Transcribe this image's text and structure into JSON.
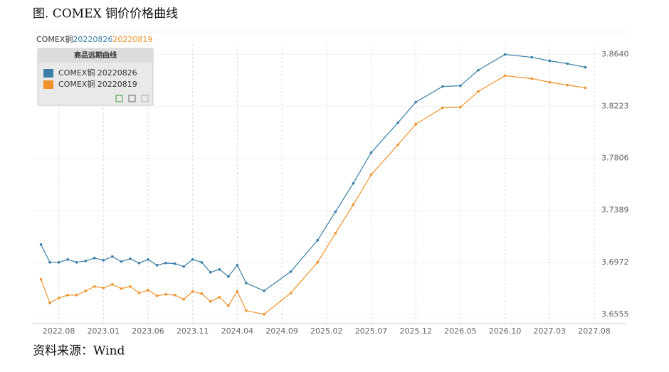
{
  "chart_data": {
    "type": "line",
    "title": "图. COMEX 铜价价格曲线",
    "header_parts": [
      "COMEX铜",
      "20220826",
      "20220819"
    ],
    "legend_title": "商品远期曲线",
    "source": "资料来源：Wind",
    "x": [
      "2022.06",
      "2022.07",
      "2022.08",
      "2022.09",
      "2022.10",
      "2022.11",
      "2022.12",
      "2023.01",
      "2023.02",
      "2023.03",
      "2023.04",
      "2023.05",
      "2023.06",
      "2023.07",
      "2023.08",
      "2023.09",
      "2023.10",
      "2023.11",
      "2023.12",
      "2024.01",
      "2024.02",
      "2024.03",
      "2024.04",
      "2024.05",
      "2024.07",
      "2024.10",
      "2025.01",
      "2025.03",
      "2025.05",
      "2025.07",
      "2025.10",
      "2025.12",
      "2026.03",
      "2026.05",
      "2026.07",
      "2026.10",
      "2027.01",
      "2027.03",
      "2027.05",
      "2027.07"
    ],
    "series": [
      {
        "name": "COMEX铜 20220826",
        "color": "#3a7fa8",
        "values": [
          3.7115,
          3.6972,
          3.6972,
          3.6995,
          3.6972,
          3.6983,
          3.7006,
          3.6989,
          3.7018,
          3.6978,
          3.7001,
          3.6966,
          3.6995,
          3.6949,
          3.6966,
          3.6961,
          3.6938,
          3.6995,
          3.6972,
          3.6892,
          3.6915,
          3.6858,
          3.6949,
          3.6806,
          3.6743,
          3.6898,
          3.7149,
          3.7378,
          3.7606,
          3.7852,
          3.8092,
          3.8257,
          3.8383,
          3.8389,
          3.8514,
          3.864,
          3.8617,
          3.8589,
          3.8566,
          3.8537
        ]
      },
      {
        "name": "COMEX铜 20220819",
        "color": "#f0922b",
        "values": [
          3.6835,
          3.6646,
          3.6686,
          3.6709,
          3.6709,
          3.6743,
          3.6778,
          3.6766,
          3.6795,
          3.6761,
          3.6778,
          3.6726,
          3.6749,
          3.6703,
          3.6715,
          3.6709,
          3.6675,
          3.6738,
          3.6721,
          3.6658,
          3.6692,
          3.6624,
          3.6738,
          3.6584,
          3.6555,
          3.6726,
          3.6972,
          3.7206,
          3.7435,
          3.7675,
          3.7915,
          3.808,
          3.8212,
          3.8217,
          3.8343,
          3.8469,
          3.8446,
          3.8417,
          3.8394,
          3.8372
        ]
      }
    ],
    "xlim": [
      "2022.05",
      "2027.08"
    ],
    "xticks": [
      "2022.08",
      "2023.01",
      "2023.06",
      "2023.11",
      "2024.04",
      "2024.09",
      "2025.02",
      "2025.07",
      "2025.12",
      "2026.05",
      "2026.10",
      "2027.03",
      "2027.08"
    ],
    "ylim": [
      3.648,
      3.882
    ],
    "yticks": [
      3.6555,
      3.6972,
      3.7389,
      3.7806,
      3.8223,
      {
        "value": 3.864,
        "label": "3.8640"
      }
    ],
    "grid": true
  }
}
